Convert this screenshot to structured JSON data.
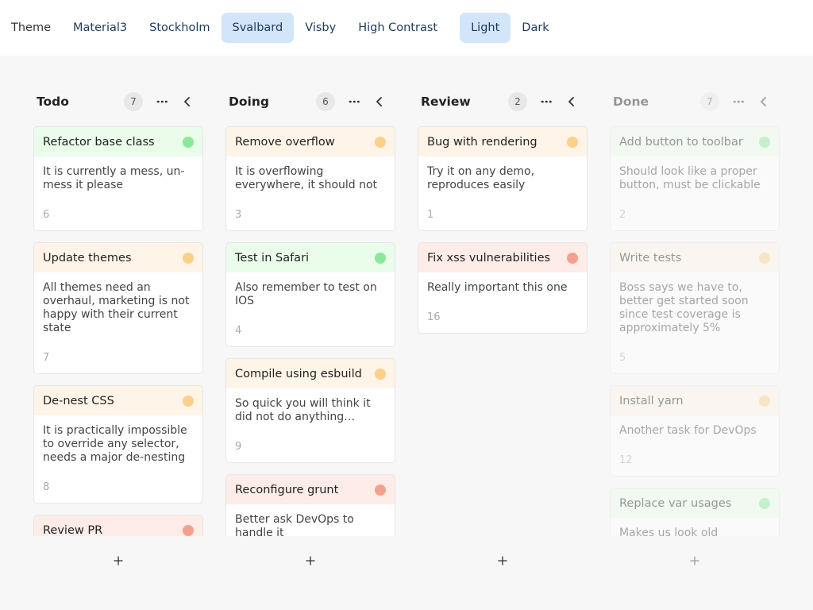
{
  "toolbar": {
    "label": "Theme",
    "themes": [
      {
        "text": "Material3",
        "selected": false
      },
      {
        "text": "Stockholm",
        "selected": false
      },
      {
        "text": "Svalbard",
        "selected": true
      },
      {
        "text": "Visby",
        "selected": false
      },
      {
        "text": "High Contrast",
        "selected": false
      }
    ],
    "modes": [
      {
        "text": "Light",
        "selected": true
      },
      {
        "text": "Dark",
        "selected": false
      }
    ]
  },
  "columns": [
    {
      "title": "Todo",
      "count": 7,
      "faded": false,
      "cards": [
        {
          "title": "Refactor base class",
          "status": "green",
          "text": "It is currently a mess, un-mess it please",
          "id": 6
        },
        {
          "title": "Update themes",
          "status": "orange",
          "text": "All themes need an overhaul, marketing is not happy with their current state",
          "id": 7
        },
        {
          "title": "De-nest CSS",
          "status": "orange",
          "text": "It is practically impossible to override any selector, needs a major de-nesting",
          "id": 8
        },
        {
          "title": "Review PR",
          "status": "red"
        }
      ]
    },
    {
      "title": "Doing",
      "count": 6,
      "faded": false,
      "cards": [
        {
          "title": "Remove overflow",
          "status": "orange",
          "text": "It is overflowing everywhere, it should not",
          "id": 3
        },
        {
          "title": "Test in Safari",
          "status": "green",
          "text": "Also remember to test on IOS",
          "id": 4
        },
        {
          "title": "Compile using esbuild",
          "status": "orange",
          "text": "So quick you will think it did not do anything…",
          "id": 9
        },
        {
          "title": "Reconfigure grunt",
          "status": "red",
          "text": "Better ask DevOps to handle it"
        }
      ]
    },
    {
      "title": "Review",
      "count": 2,
      "faded": false,
      "cards": [
        {
          "title": "Bug with rendering",
          "status": "orange",
          "text": "Try it on any demo, reproduces easily",
          "id": 1
        },
        {
          "title": "Fix xss vulnerabilities",
          "status": "red",
          "text": "Really important this one",
          "id": 16
        }
      ]
    },
    {
      "title": "Done",
      "count": 7,
      "faded": true,
      "cards": [
        {
          "title": "Add button to toolbar",
          "status": "green",
          "text": "Should look like a proper button, must be clickable",
          "id": 2
        },
        {
          "title": "Write tests",
          "status": "orange",
          "text": "Boss says we have to, better get started soon since test coverage is approximately 5%",
          "id": 5
        },
        {
          "title": "Install yarn",
          "status": "orange",
          "text": "Another task for DevOps",
          "id": 12
        },
        {
          "title": "Replace var usages",
          "status": "green",
          "text": "Makes us look old"
        }
      ]
    }
  ]
}
